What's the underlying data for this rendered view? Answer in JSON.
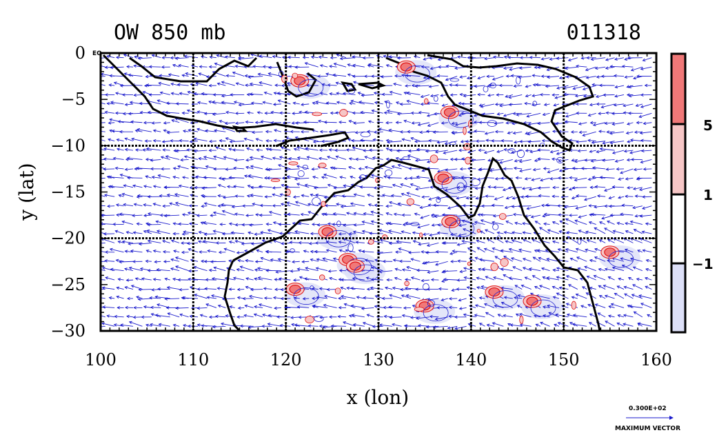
{
  "chart_data": {
    "type": "contour-vector-map",
    "title_left": "OW 850 mb",
    "title_right": "011318",
    "xlabel": "x (lon)",
    "ylabel": "y (lat)",
    "xlim": [
      100,
      160
    ],
    "ylim": [
      -30,
      0
    ],
    "x_ticks": [
      100,
      110,
      120,
      130,
      140,
      150,
      160
    ],
    "x_tick_labels": [
      "100",
      "110",
      "120",
      "130",
      "140",
      "150",
      "160"
    ],
    "y_ticks": [
      0,
      -5,
      -10,
      -15,
      -20,
      -25,
      -30
    ],
    "y_tick_labels": [
      "0",
      "−5",
      "−10",
      "−15",
      "−20",
      "−25",
      "−30"
    ],
    "eq_label": "EQ",
    "grid_lines": {
      "lon": [
        110,
        120,
        130,
        140,
        150
      ],
      "lat": [
        -10,
        -20
      ]
    },
    "colorbar": {
      "levels": [
        -1,
        1,
        5
      ],
      "level_labels": [
        "−1",
        "1",
        "5"
      ],
      "colors": [
        "#dde0f8",
        "#ffffff",
        "#f6c6c6",
        "#f07878"
      ]
    },
    "vector_key": {
      "value": "0.300E+02",
      "label": "MAXIMUM VECTOR"
    },
    "colors": {
      "vector": "#1a1acc",
      "positive_contour": "#e01010",
      "negative_contour": "#2020d0",
      "coast": "#000000"
    },
    "ow_features": [
      {
        "lon": 124.5,
        "lat": -19.3,
        "sign": "positive"
      },
      {
        "lon": 126.7,
        "lat": -22.3,
        "sign": "positive"
      },
      {
        "lon": 127.5,
        "lat": -23.0,
        "sign": "positive"
      },
      {
        "lon": 137.7,
        "lat": -6.4,
        "sign": "positive"
      },
      {
        "lon": 137.8,
        "lat": -18.2,
        "sign": "positive"
      },
      {
        "lon": 142.5,
        "lat": -25.8,
        "sign": "positive"
      },
      {
        "lon": 146.6,
        "lat": -26.8,
        "sign": "positive"
      },
      {
        "lon": 135.0,
        "lat": -27.3,
        "sign": "positive"
      },
      {
        "lon": 121.0,
        "lat": -25.5,
        "sign": "positive"
      },
      {
        "lon": 121.5,
        "lat": -3.0,
        "sign": "positive"
      },
      {
        "lon": 133.0,
        "lat": -1.5,
        "sign": "positive"
      },
      {
        "lon": 137.0,
        "lat": -13.5,
        "sign": "positive"
      },
      {
        "lon": 155.0,
        "lat": -21.5,
        "sign": "positive"
      }
    ]
  }
}
